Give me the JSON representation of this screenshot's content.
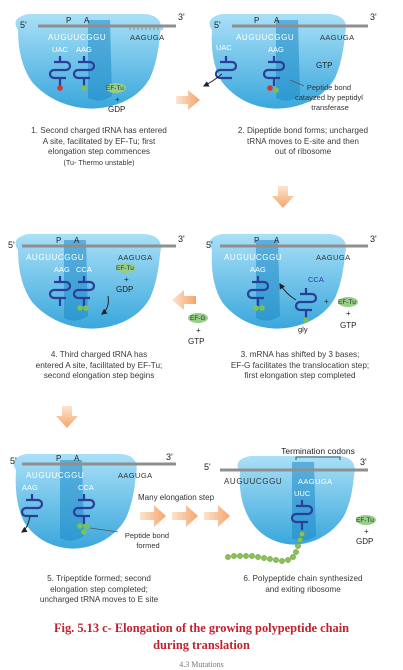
{
  "colors": {
    "ribosome_light": "#8fd3f2",
    "ribosome_dark": "#2b9bd5",
    "trna": "#2a3e9a",
    "mrna": "#8f8f8f",
    "arrow": "#f6b98a",
    "factor": "#97cd84",
    "chain": "#8cc05b",
    "caption_red": "#c0222f"
  },
  "panels": [
    {
      "end5": "5'",
      "end3": "3'",
      "P": "P",
      "A": "A",
      "codons": "AUGUUCGGU",
      "tail": "AAGUGA",
      "anticodon1": "UAC",
      "anticodon2": "AAG",
      "factor": "EF-Tu",
      "plus": "+",
      "gdp": "GDP",
      "caption": [
        "1. Second charged tRNA has entered",
        "A site, facilitated by EF-Tu; first",
        "elongation step commences",
        "(Tu- Thermo unstable)"
      ]
    },
    {
      "end5": "5'",
      "end3": "3'",
      "P": "P",
      "A": "A",
      "codons": "AUGUUCGGU",
      "tail": "AAGUGA",
      "anticodon_exit": "UAC",
      "anticodon2": "AAG",
      "gtp": "GTP",
      "note": [
        "Peptide bond",
        "catayzed by peptidyl",
        "transferase"
      ],
      "caption": [
        "2. Dipeptide bond forms; uncharged",
        "tRNA moves to E-site and then",
        "out of ribosome"
      ]
    },
    {
      "end5": "5'",
      "end3": "3'",
      "P": "P",
      "A": "A",
      "codons": "AUGUUCGGU",
      "tail": "AAGUGA",
      "anticodon1": "AAG",
      "anticodon2": "CCA",
      "factor": "EF-Tu",
      "plus": "+",
      "gdp": "GDP",
      "caption": [
        "4. Third charged tRNA has",
        "entered A site, facilitated by EF-Tu;",
        "second elongation step begins"
      ]
    },
    {
      "end5": "5'",
      "end3": "3'",
      "P": "P",
      "A": "A",
      "codons": "AUGUUCGGU",
      "tail": "AAGUGA",
      "anticodon1": "AAG",
      "incoming": "CCA",
      "gly": "gly",
      "factor_tu": "EF-Tu",
      "plus": "+",
      "gtp": "GTP",
      "factor_g": "EF-G",
      "plus2": "+",
      "gtp2": "GTP",
      "caption": [
        "3. mRNA has shifted by 3 bases;",
        "EF-G facilitates the translocation step;",
        "first elongation step completed"
      ]
    },
    {
      "end5": "5'",
      "end3": "3'",
      "P": "P",
      "A": "A",
      "codons": "AUGUUCGGU",
      "tail": "AAGUGA",
      "anticodon_exit": "AAG",
      "anticodon2": "CCA",
      "note": [
        "Peptide bond",
        "formed"
      ],
      "caption": [
        "5. Tripeptide formed; second",
        "elongation step completed;",
        "uncharged tRNA moves to E site"
      ]
    },
    {
      "end5": "5'",
      "end3": "3'",
      "codons": "AUGUUCGGU",
      "tail": "AAGUGA",
      "anticodon": "UUC",
      "termination": "Termination codons",
      "factor": "EF-Tu",
      "plus": "+",
      "gdp": "GDP",
      "caption": [
        "6. Polypeptide chain synthesized",
        "and exiting ribosome"
      ]
    }
  ],
  "many_steps": "Many elongation step",
  "figure_caption": [
    "Fig. 5.13 c-  Elongation of the growing polypeptide chain",
    "during translation"
  ],
  "mutation_line": "4.3 Mutations"
}
